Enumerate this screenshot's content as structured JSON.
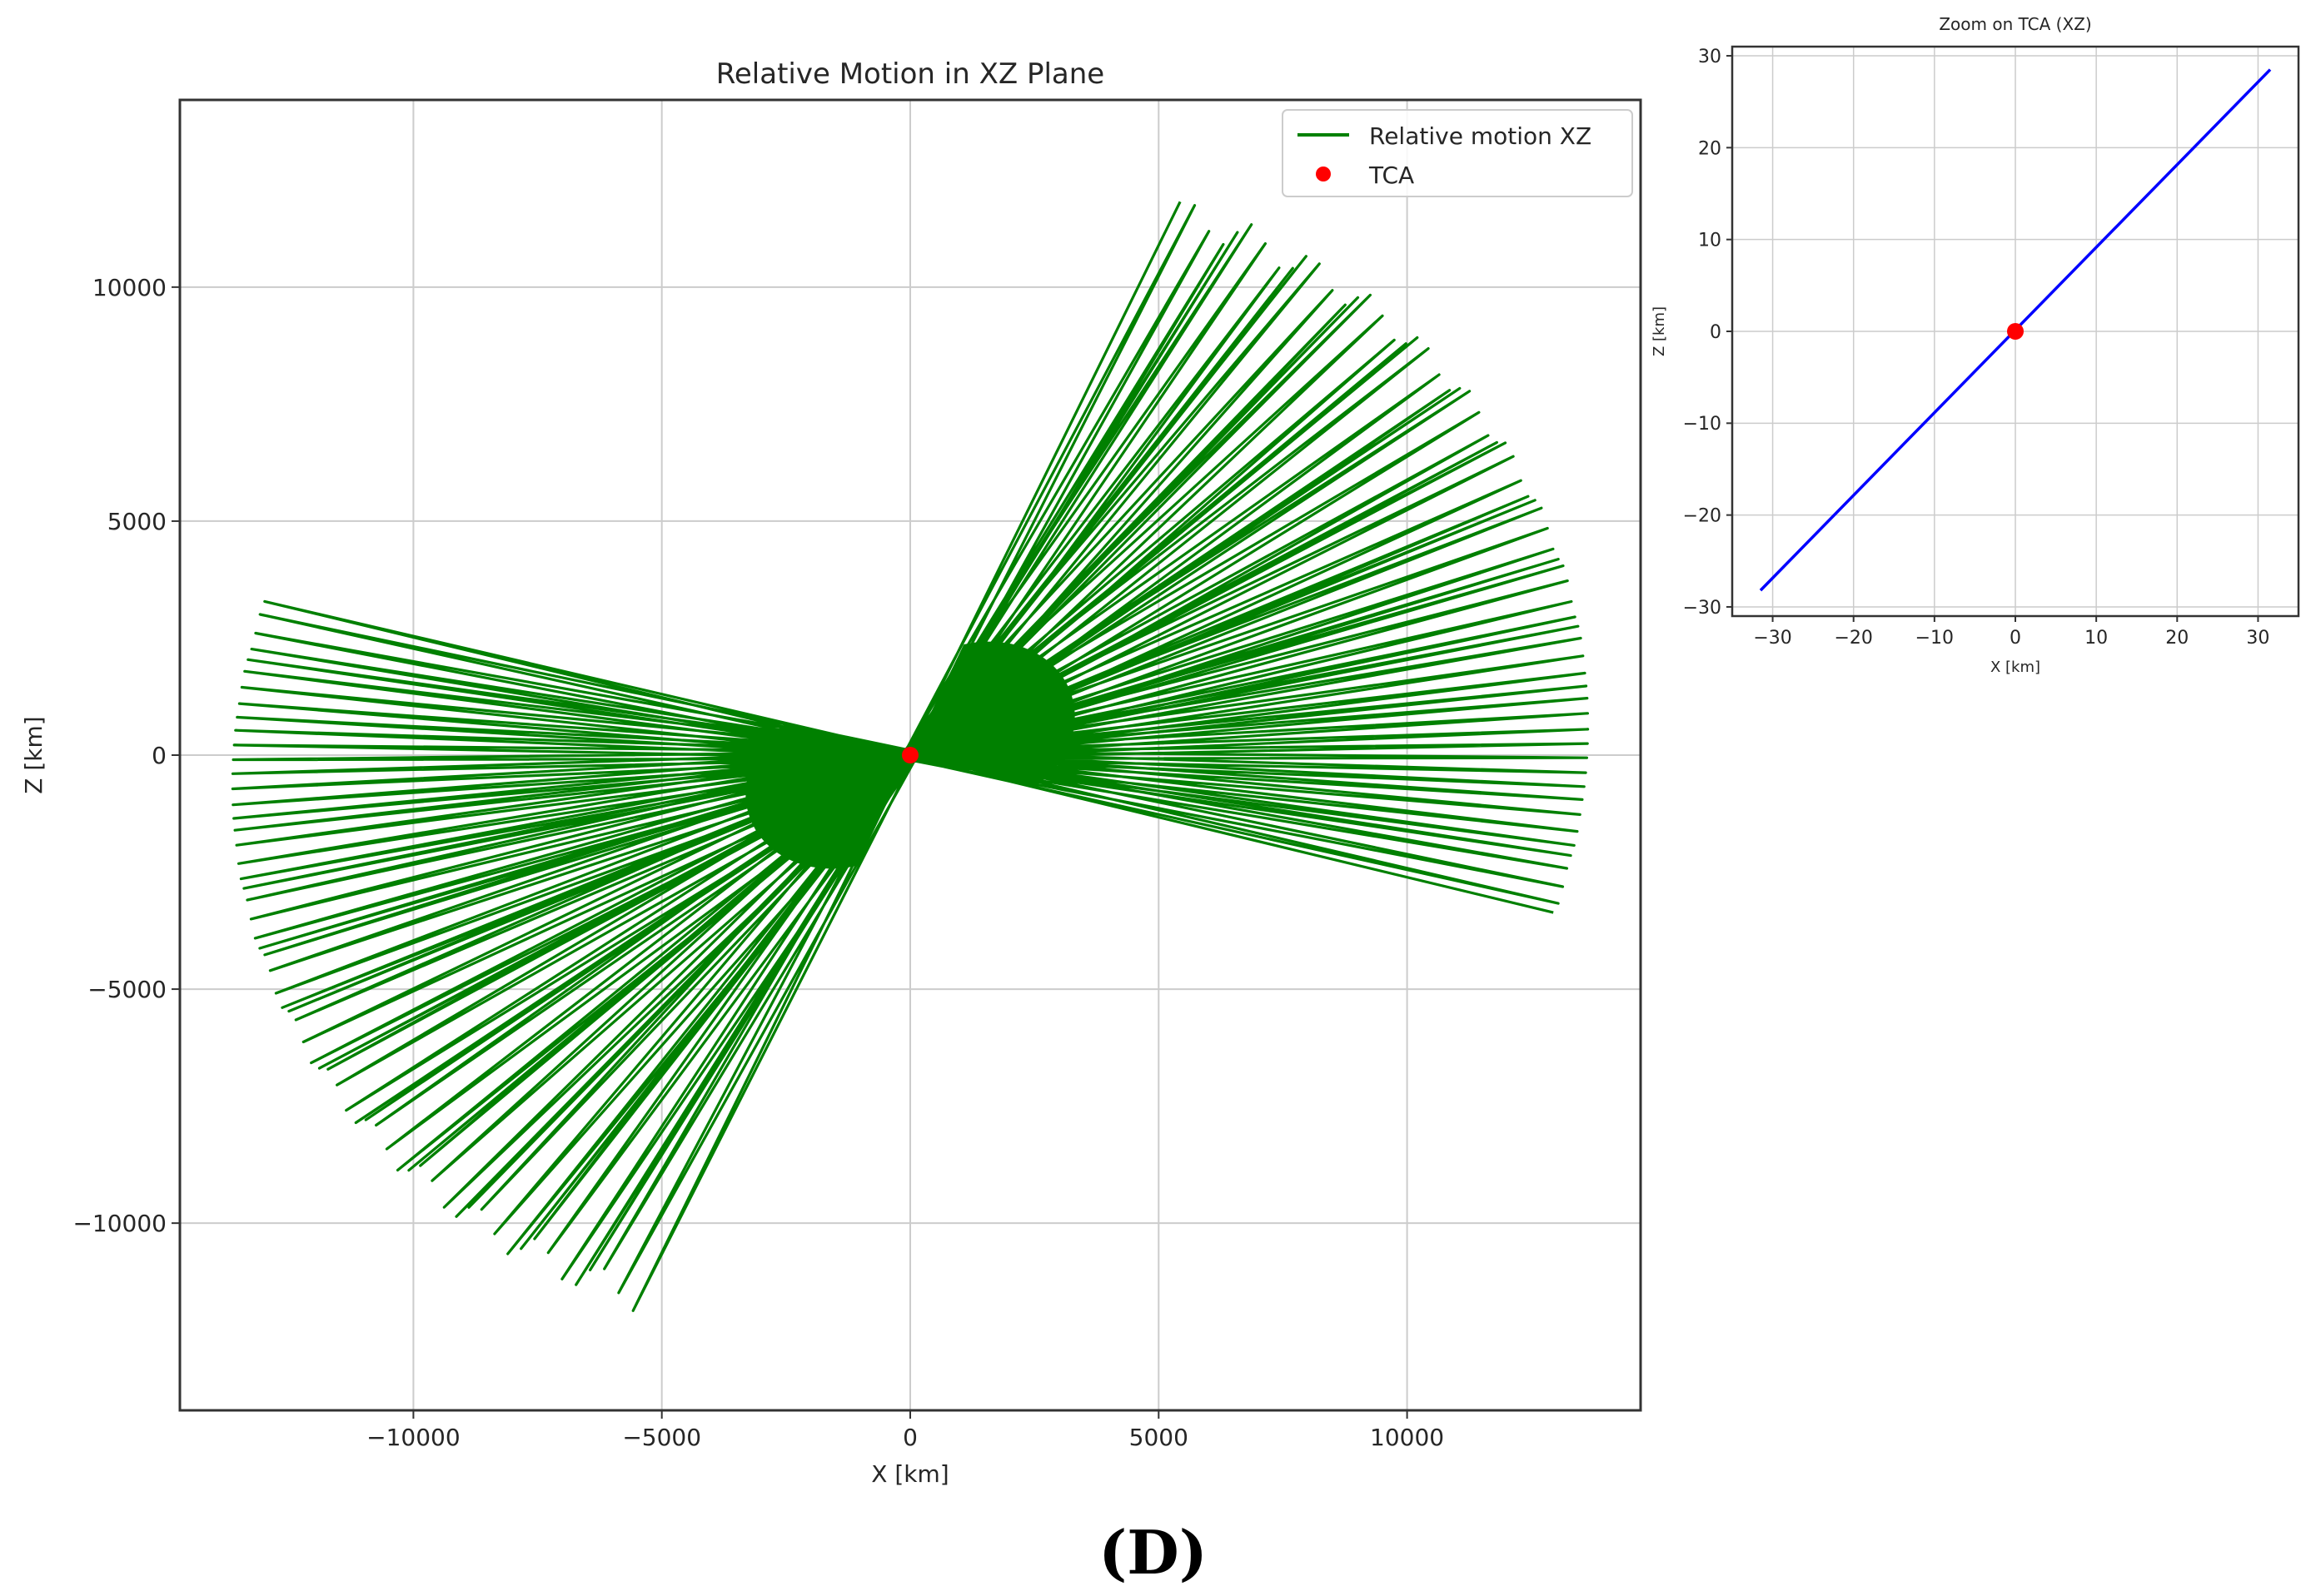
{
  "chart_data": [
    {
      "type": "line",
      "title": "Relative Motion in XZ Plane",
      "xlabel": "X [km]",
      "ylabel": "Z [km]",
      "xlim": [
        -14700,
        14700
      ],
      "ylim": [
        -14000,
        14000
      ],
      "xticks": [
        -10000,
        -5000,
        0,
        5000,
        10000
      ],
      "yticks": [
        -10000,
        -5000,
        0,
        5000,
        10000
      ],
      "xtick_labels": [
        "−10000",
        "−5000",
        "0",
        "5000",
        "10000"
      ],
      "ytick_labels": [
        "−10000",
        "−5000",
        "0",
        "5000",
        "10000"
      ],
      "grid": true,
      "legend_position": "top-right",
      "series": [
        {
          "name": "Relative motion XZ",
          "color": "#008000",
          "style": "dense zig-zag fan of chords through the origin, outer envelope sweeping from (13000, -3500) up through (13350, 0) and (5800, 12700), and symmetrically from (-13000, 3300) through (-13350, 0) to (-5600, -12800)",
          "outer_points": [
            {
              "x": 5800,
              "y": 12700
            },
            {
              "x": 13350,
              "y": 0
            },
            {
              "x": 13000,
              "y": -3500
            },
            {
              "x": -13000,
              "y": 3300
            },
            {
              "x": -13350,
              "y": 0
            },
            {
              "x": -5600,
              "y": -12800
            }
          ]
        },
        {
          "name": "TCA",
          "color": "#ff0000",
          "marker": "circle",
          "x": [
            0
          ],
          "y": [
            0
          ]
        }
      ]
    },
    {
      "type": "line",
      "title": "Zoom on TCA (XZ)",
      "xlabel": "X [km]",
      "ylabel": "Z [km]",
      "xlim": [
        -35,
        35
      ],
      "ylim": [
        -31,
        31
      ],
      "xticks": [
        -30,
        -20,
        -10,
        0,
        10,
        20,
        30
      ],
      "yticks": [
        -30,
        -20,
        -10,
        0,
        10,
        20,
        30
      ],
      "xtick_labels": [
        "−30",
        "−20",
        "−10",
        "0",
        "10",
        "20",
        "30"
      ],
      "ytick_labels": [
        "−30",
        "−20",
        "−10",
        "0",
        "10",
        "20",
        "30"
      ],
      "grid": true,
      "series": [
        {
          "name": "",
          "color": "#0000ff",
          "x": [
            -31.5,
            31.5
          ],
          "y": [
            -28.2,
            28.5
          ]
        },
        {
          "name": "",
          "color": "#ff0000",
          "marker": "circle",
          "x": [
            0
          ],
          "y": [
            0
          ]
        }
      ]
    }
  ],
  "panel_label": "(D)",
  "colors": {
    "grid": "#cccccc",
    "axes": "#333333"
  }
}
